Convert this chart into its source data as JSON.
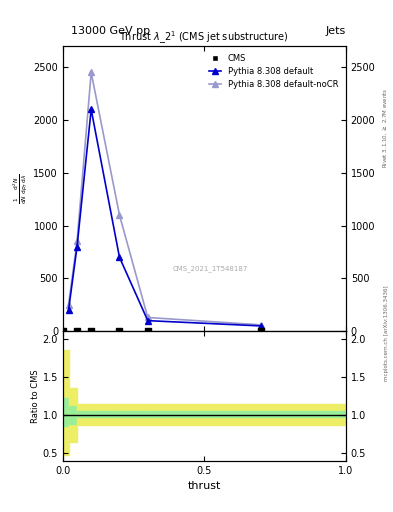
{
  "title_left": "13000 GeV pp",
  "title_right": "Jets",
  "plot_title": "Thrust $\\lambda\\_2^1$ (CMS jet substructure)",
  "xlabel": "thrust",
  "ylabel_main": "$\\frac{1}{\\mathrm{d}N}\\,/\\,\\mathrm{mathrm}\\,\\mathrm{d}\\,p_T\\,\\mathrm{mathrm}\\,\\mathrm{d}\\,\\mathrm{lambda}$",
  "ylabel_ratio": "Ratio to CMS",
  "right_label": "Rivet 3.1.10, $\\geq$ 2.7M events",
  "right_label2": "mcplots.cern.ch [arXiv:1306.3436]",
  "watermark": "CMS_2021_1T548187",
  "cms_x": [
    0.0,
    0.05,
    0.1,
    0.2,
    0.3,
    0.7
  ],
  "cms_y": [
    0,
    0,
    0,
    0,
    0,
    0
  ],
  "pythia_default_x": [
    0.02,
    0.05,
    0.1,
    0.2,
    0.3,
    0.7
  ],
  "pythia_default_y": [
    200,
    800,
    2100,
    700,
    100,
    50
  ],
  "pythia_nocr_x": [
    0.02,
    0.05,
    0.1,
    0.2,
    0.3,
    0.7
  ],
  "pythia_nocr_y": [
    250,
    850,
    2450,
    1100,
    130,
    60
  ],
  "ratio_x_edges": [
    0.0,
    0.02,
    0.05,
    0.1,
    0.2,
    0.3,
    1.0
  ],
  "ratio_green_low": [
    0.85,
    0.88,
    0.97,
    0.97,
    0.97,
    0.97
  ],
  "ratio_green_high": [
    1.22,
    1.12,
    1.05,
    1.05,
    1.05,
    1.05
  ],
  "ratio_yellow_low": [
    0.48,
    0.65,
    0.87,
    0.87,
    0.87,
    0.87
  ],
  "ratio_yellow_high": [
    1.85,
    1.35,
    1.15,
    1.15,
    1.15,
    1.15
  ],
  "ylim_main": [
    0,
    2700
  ],
  "ylim_ratio": [
    0.4,
    2.1
  ],
  "yticks_main": [
    0,
    500,
    1000,
    1500,
    2000,
    2500
  ],
  "yticks_ratio": [
    0.5,
    1.0,
    1.5,
    2.0
  ],
  "xticks": [
    0.0,
    0.5,
    1.0
  ],
  "cms_color": "#000000",
  "pythia_default_color": "#0000cc",
  "pythia_nocr_color": "#9999cc",
  "green_color": "#99ee99",
  "yellow_color": "#eeee66",
  "background_color": "#ffffff"
}
